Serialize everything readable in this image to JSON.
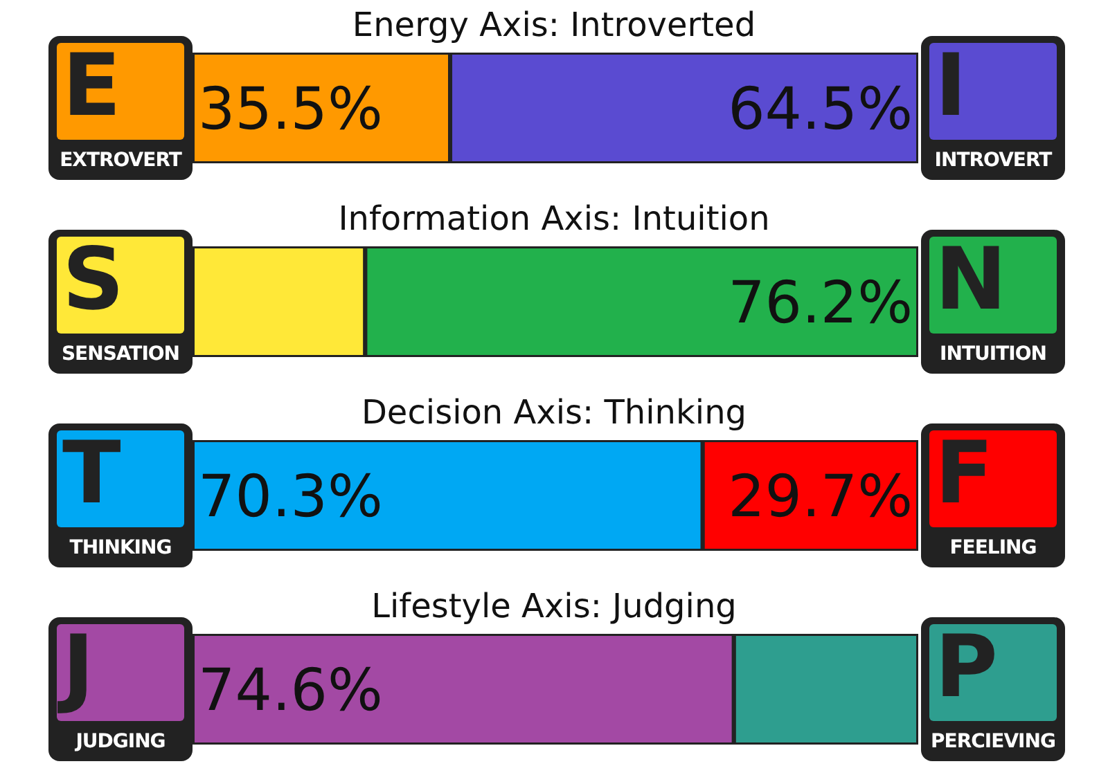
{
  "chart_data": [
    {
      "type": "bar",
      "title": "Energy Axis: Introverted",
      "orientation": "horizontal",
      "stacked": true,
      "categories": [
        null
      ],
      "xlim": [
        0,
        100
      ],
      "tick_labels": false,
      "annotations": [
        "E",
        "I"
      ],
      "series": [
        {
          "name": "EXTROVERT",
          "color": "#ff9900",
          "values": [
            35.5
          ],
          "value_labels": [
            "35.5%"
          ]
        },
        {
          "name": "INTROVERT",
          "color": "#5a4bd1",
          "values": [
            64.5
          ],
          "value_labels": [
            "64.5%"
          ]
        }
      ]
    },
    {
      "type": "bar",
      "title": "Information Axis: Intuition",
      "orientation": "horizontal",
      "stacked": true,
      "categories": [
        null
      ],
      "xlim": [
        0,
        100
      ],
      "tick_labels": false,
      "annotations": [
        "S",
        "N"
      ],
      "series": [
        {
          "name": "SENSATION",
          "color": "#ffe838",
          "values": [
            23.8
          ],
          "value_labels": [
            null
          ]
        },
        {
          "name": "INTUITION",
          "color": "#22b14c",
          "values": [
            76.2
          ],
          "value_labels": [
            "76.2%"
          ]
        }
      ]
    },
    {
      "type": "bar",
      "title": "Decision Axis: Thinking",
      "orientation": "horizontal",
      "stacked": true,
      "categories": [
        null
      ],
      "xlim": [
        0,
        100
      ],
      "tick_labels": false,
      "annotations": [
        "T",
        "F"
      ],
      "series": [
        {
          "name": "THINKING",
          "color": "#00a8f3",
          "values": [
            70.3
          ],
          "value_labels": [
            "70.3%"
          ]
        },
        {
          "name": "FEELING",
          "color": "#ff0000",
          "values": [
            29.7
          ],
          "value_labels": [
            "29.7%"
          ]
        }
      ]
    },
    {
      "type": "bar",
      "title": "Lifestyle Axis: Judging",
      "orientation": "horizontal",
      "stacked": true,
      "categories": [
        null
      ],
      "xlim": [
        0,
        100
      ],
      "tick_labels": false,
      "annotations": [
        "J",
        "P"
      ],
      "series": [
        {
          "name": "JUDGING",
          "color": "#a349a4",
          "values": [
            74.6
          ],
          "value_labels": [
            "74.6%"
          ]
        },
        {
          "name": "PERCIEVING",
          "color": "#2e9e8f",
          "values": [
            25.4
          ],
          "value_labels": [
            null
          ]
        }
      ]
    }
  ]
}
